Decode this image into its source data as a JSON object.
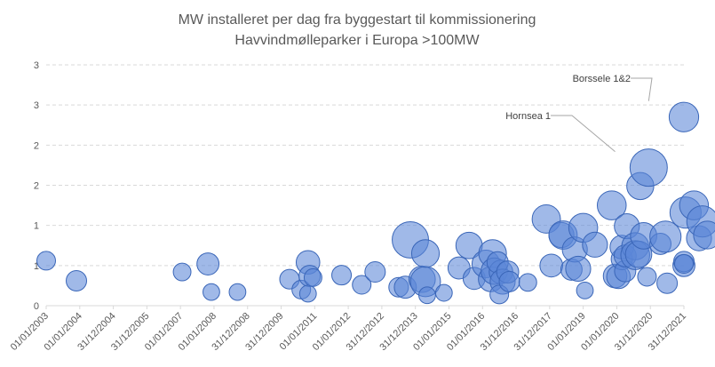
{
  "chart_data": {
    "type": "bubble",
    "title": "MW installeret per dag fra byggestart til kommissionering",
    "subtitle": "Havvindmølleparker i Europa >100MW",
    "xlabel": "",
    "ylabel": "",
    "x_tick_labels": [
      "01/01/2003",
      "01/01/2004",
      "31/12/2004",
      "31/12/2005",
      "01/01/2007",
      "01/01/2008",
      "31/12/2008",
      "31/12/2009",
      "01/01/2011",
      "01/01/2012",
      "31/12/2012",
      "31/12/2013",
      "01/01/2015",
      "01/01/2016",
      "31/12/2016",
      "31/12/2017",
      "01/01/2019",
      "01/01/2020",
      "31/12/2020",
      "31/12/2021"
    ],
    "x_range_years": [
      2003.0,
      2022.0
    ],
    "y_tick_labels": [
      "0",
      "1",
      "1",
      "2",
      "2",
      "3",
      "3"
    ],
    "y_range": [
      0,
      3.0
    ],
    "gridlines": "horizontal-dashed",
    "legend": "none",
    "annotations": [
      {
        "text": "Hornsea 1",
        "x": 2019.95,
        "y": 1.72
      },
      {
        "text": "Borssele 1&2",
        "x": 2020.95,
        "y": 2.35
      }
    ],
    "points": [
      {
        "x": 2003.0,
        "y": 0.56,
        "size": 1.0
      },
      {
        "x": 2003.9,
        "y": 0.31,
        "size": 1.2
      },
      {
        "x": 2007.05,
        "y": 0.42,
        "size": 0.9
      },
      {
        "x": 2007.82,
        "y": 0.52,
        "size": 1.4
      },
      {
        "x": 2007.92,
        "y": 0.17,
        "size": 0.8
      },
      {
        "x": 2008.7,
        "y": 0.17,
        "size": 0.8
      },
      {
        "x": 2010.25,
        "y": 0.33,
        "size": 1.1
      },
      {
        "x": 2010.6,
        "y": 0.2,
        "size": 1.0
      },
      {
        "x": 2010.8,
        "y": 0.54,
        "size": 1.6
      },
      {
        "x": 2010.85,
        "y": 0.37,
        "size": 1.3
      },
      {
        "x": 2010.8,
        "y": 0.15,
        "size": 0.8
      },
      {
        "x": 2010.95,
        "y": 0.35,
        "size": 0.9
      },
      {
        "x": 2011.8,
        "y": 0.38,
        "size": 1.1
      },
      {
        "x": 2012.4,
        "y": 0.26,
        "size": 1.0
      },
      {
        "x": 2012.8,
        "y": 0.42,
        "size": 1.2
      },
      {
        "x": 2013.5,
        "y": 0.23,
        "size": 1.1
      },
      {
        "x": 2013.85,
        "y": 0.82,
        "size": 3.8
      },
      {
        "x": 2013.7,
        "y": 0.23,
        "size": 1.4
      },
      {
        "x": 2014.2,
        "y": 0.33,
        "size": 2.0
      },
      {
        "x": 2014.3,
        "y": 0.3,
        "size": 2.6
      },
      {
        "x": 2014.3,
        "y": 0.65,
        "size": 2.2
      },
      {
        "x": 2014.35,
        "y": 0.13,
        "size": 0.8
      },
      {
        "x": 2014.85,
        "y": 0.16,
        "size": 0.8
      },
      {
        "x": 2015.3,
        "y": 0.47,
        "size": 1.4
      },
      {
        "x": 2015.6,
        "y": 0.75,
        "size": 2.0
      },
      {
        "x": 2015.75,
        "y": 0.34,
        "size": 1.4
      },
      {
        "x": 2016.1,
        "y": 0.52,
        "size": 2.2
      },
      {
        "x": 2016.3,
        "y": 0.65,
        "size": 2.2
      },
      {
        "x": 2016.25,
        "y": 0.33,
        "size": 1.8
      },
      {
        "x": 2016.35,
        "y": 0.43,
        "size": 2.0
      },
      {
        "x": 2016.55,
        "y": 0.42,
        "size": 1.6
      },
      {
        "x": 2016.45,
        "y": 0.54,
        "size": 1.3
      },
      {
        "x": 2016.6,
        "y": 0.3,
        "size": 1.8
      },
      {
        "x": 2016.5,
        "y": 0.14,
        "size": 1.0
      },
      {
        "x": 2016.75,
        "y": 0.42,
        "size": 1.4
      },
      {
        "x": 2016.8,
        "y": 0.3,
        "size": 1.2
      },
      {
        "x": 2017.35,
        "y": 0.29,
        "size": 0.9
      },
      {
        "x": 2017.9,
        "y": 1.08,
        "size": 2.3
      },
      {
        "x": 2018.05,
        "y": 0.5,
        "size": 1.5
      },
      {
        "x": 2018.35,
        "y": 0.88,
        "size": 1.8
      },
      {
        "x": 2018.4,
        "y": 0.88,
        "size": 2.3
      },
      {
        "x": 2018.65,
        "y": 0.45,
        "size": 1.3
      },
      {
        "x": 2018.75,
        "y": 0.7,
        "size": 1.8
      },
      {
        "x": 2018.85,
        "y": 0.46,
        "size": 1.8
      },
      {
        "x": 2019.0,
        "y": 0.97,
        "size": 2.4
      },
      {
        "x": 2019.05,
        "y": 0.19,
        "size": 0.8
      },
      {
        "x": 2019.35,
        "y": 0.76,
        "size": 1.8
      },
      {
        "x": 2019.85,
        "y": 1.25,
        "size": 2.4
      },
      {
        "x": 2019.95,
        "y": 0.37,
        "size": 1.6
      },
      {
        "x": 2020.05,
        "y": 0.36,
        "size": 1.6
      },
      {
        "x": 2020.15,
        "y": 0.58,
        "size": 1.3
      },
      {
        "x": 2020.15,
        "y": 0.73,
        "size": 1.6
      },
      {
        "x": 2020.25,
        "y": 0.43,
        "size": 1.3
      },
      {
        "x": 2020.25,
        "y": 0.62,
        "size": 1.4
      },
      {
        "x": 2020.3,
        "y": 0.99,
        "size": 1.8
      },
      {
        "x": 2020.55,
        "y": 0.74,
        "size": 2.1
      },
      {
        "x": 2020.55,
        "y": 0.63,
        "size": 2.4
      },
      {
        "x": 2020.65,
        "y": 0.64,
        "size": 2.0
      },
      {
        "x": 2020.7,
        "y": 1.49,
        "size": 2.1
      },
      {
        "x": 2020.8,
        "y": 0.87,
        "size": 2.0
      },
      {
        "x": 2020.9,
        "y": 0.36,
        "size": 1.0
      },
      {
        "x": 2020.95,
        "y": 1.72,
        "size": 4.0
      },
      {
        "x": 2021.3,
        "y": 0.77,
        "size": 1.3
      },
      {
        "x": 2021.45,
        "y": 0.86,
        "size": 2.8
      },
      {
        "x": 2021.5,
        "y": 0.28,
        "size": 1.2
      },
      {
        "x": 2022.0,
        "y": 0.5,
        "size": 1.4
      },
      {
        "x": 2022.0,
        "y": 0.55,
        "size": 1.2
      },
      {
        "x": 2022.0,
        "y": 0.52,
        "size": 1.0
      },
      {
        "x": 2022.0,
        "y": 2.35,
        "size": 2.5
      },
      {
        "x": 2022.05,
        "y": 1.16,
        "size": 2.8
      },
      {
        "x": 2022.3,
        "y": 1.25,
        "size": 2.4
      },
      {
        "x": 2022.45,
        "y": 0.84,
        "size": 1.8
      },
      {
        "x": 2022.55,
        "y": 1.05,
        "size": 2.8
      },
      {
        "x": 2022.7,
        "y": 0.88,
        "size": 2.2
      }
    ]
  }
}
